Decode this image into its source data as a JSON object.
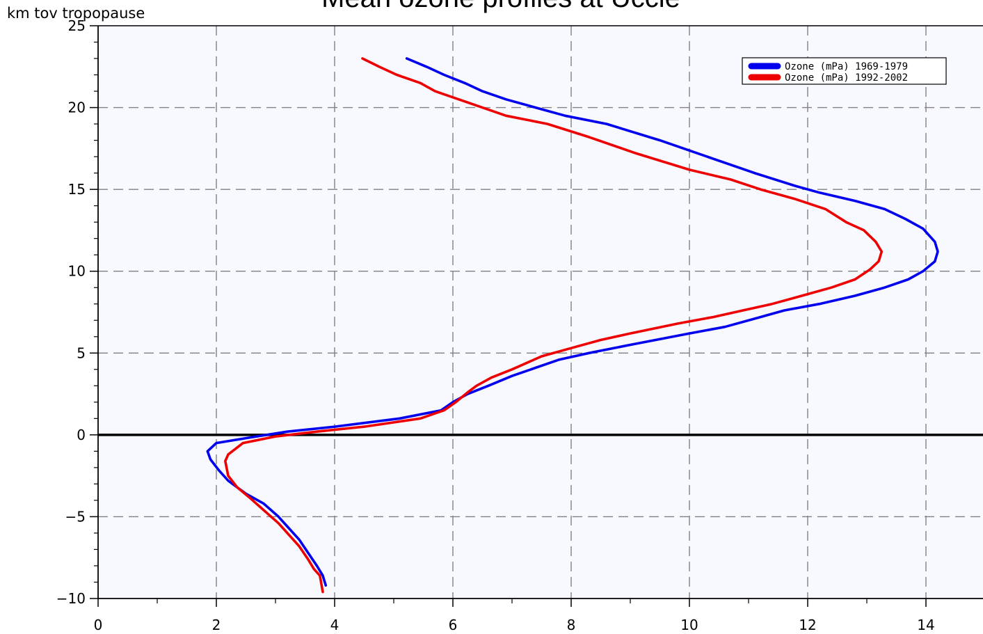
{
  "chart_data": {
    "type": "line",
    "title": "Mean ozone profiles at Uccle",
    "xlabel": "",
    "ylabel": "km tov tropopause",
    "xlim": [
      0,
      15
    ],
    "ylim": [
      -10,
      25
    ],
    "x_ticks": [
      0,
      2,
      4,
      6,
      8,
      10,
      12,
      14
    ],
    "y_ticks": [
      -10,
      -5,
      0,
      5,
      10,
      15,
      20,
      25
    ],
    "grid": true,
    "legend_position": "top-right",
    "zero_line": 0,
    "series": [
      {
        "name": "Ozone (mPa) 1969-1979",
        "color": "#0000ee",
        "points": [
          [
            5.22,
            23.0
          ],
          [
            5.55,
            22.5
          ],
          [
            5.85,
            22.0
          ],
          [
            6.2,
            21.5
          ],
          [
            6.5,
            21.0
          ],
          [
            6.9,
            20.5
          ],
          [
            7.4,
            20.0
          ],
          [
            7.9,
            19.5
          ],
          [
            8.6,
            19.0
          ],
          [
            9.5,
            18.0
          ],
          [
            10.3,
            17.0
          ],
          [
            11.1,
            16.0
          ],
          [
            11.8,
            15.2
          ],
          [
            12.2,
            14.8
          ],
          [
            12.8,
            14.3
          ],
          [
            13.3,
            13.8
          ],
          [
            13.65,
            13.2
          ],
          [
            13.95,
            12.6
          ],
          [
            14.15,
            11.8
          ],
          [
            14.2,
            11.2
          ],
          [
            14.15,
            10.6
          ],
          [
            13.95,
            10.0
          ],
          [
            13.7,
            9.5
          ],
          [
            13.3,
            9.0
          ],
          [
            12.8,
            8.5
          ],
          [
            12.2,
            8.0
          ],
          [
            11.6,
            7.6
          ],
          [
            11.2,
            7.2
          ],
          [
            10.6,
            6.6
          ],
          [
            10.0,
            6.2
          ],
          [
            9.0,
            5.5
          ],
          [
            8.3,
            5.0
          ],
          [
            7.8,
            4.6
          ],
          [
            7.0,
            3.6
          ],
          [
            6.6,
            3.0
          ],
          [
            6.25,
            2.5
          ],
          [
            6.0,
            2.0
          ],
          [
            5.8,
            1.5
          ],
          [
            5.1,
            1.0
          ],
          [
            4.0,
            0.5
          ],
          [
            3.2,
            0.2
          ],
          [
            2.5,
            -0.2
          ],
          [
            2.0,
            -0.5
          ],
          [
            1.85,
            -1.0
          ],
          [
            1.9,
            -1.5
          ],
          [
            2.05,
            -2.2
          ],
          [
            2.2,
            -2.8
          ],
          [
            2.5,
            -3.6
          ],
          [
            2.8,
            -4.2
          ],
          [
            3.05,
            -5.0
          ],
          [
            3.2,
            -5.6
          ],
          [
            3.4,
            -6.4
          ],
          [
            3.55,
            -7.2
          ],
          [
            3.7,
            -8.0
          ],
          [
            3.8,
            -8.6
          ],
          [
            3.85,
            -9.2
          ]
        ]
      },
      {
        "name": "Ozone (mPa) 1992-2002",
        "color": "#ee0000",
        "points": [
          [
            4.47,
            23.0
          ],
          [
            4.75,
            22.5
          ],
          [
            5.05,
            22.0
          ],
          [
            5.45,
            21.5
          ],
          [
            5.7,
            21.0
          ],
          [
            6.1,
            20.5
          ],
          [
            6.5,
            20.0
          ],
          [
            6.9,
            19.5
          ],
          [
            7.6,
            19.0
          ],
          [
            8.3,
            18.2
          ],
          [
            9.1,
            17.2
          ],
          [
            10.0,
            16.2
          ],
          [
            10.7,
            15.6
          ],
          [
            11.2,
            15.0
          ],
          [
            11.8,
            14.4
          ],
          [
            12.3,
            13.8
          ],
          [
            12.65,
            13.0
          ],
          [
            12.95,
            12.5
          ],
          [
            13.15,
            11.8
          ],
          [
            13.25,
            11.2
          ],
          [
            13.2,
            10.6
          ],
          [
            13.05,
            10.1
          ],
          [
            12.8,
            9.5
          ],
          [
            12.4,
            9.0
          ],
          [
            11.9,
            8.5
          ],
          [
            11.4,
            8.0
          ],
          [
            10.9,
            7.6
          ],
          [
            10.4,
            7.2
          ],
          [
            9.8,
            6.8
          ],
          [
            9.0,
            6.2
          ],
          [
            8.5,
            5.8
          ],
          [
            8.0,
            5.3
          ],
          [
            7.5,
            4.8
          ],
          [
            7.0,
            4.0
          ],
          [
            6.65,
            3.5
          ],
          [
            6.4,
            3.0
          ],
          [
            6.25,
            2.6
          ],
          [
            6.05,
            2.0
          ],
          [
            5.85,
            1.5
          ],
          [
            5.45,
            1.0
          ],
          [
            4.5,
            0.5
          ],
          [
            3.7,
            0.2
          ],
          [
            3.0,
            -0.1
          ],
          [
            2.45,
            -0.5
          ],
          [
            2.2,
            -1.2
          ],
          [
            2.15,
            -1.6
          ],
          [
            2.2,
            -2.5
          ],
          [
            2.35,
            -3.2
          ],
          [
            2.55,
            -3.8
          ],
          [
            2.8,
            -4.6
          ],
          [
            3.05,
            -5.4
          ],
          [
            3.2,
            -6.0
          ],
          [
            3.4,
            -6.8
          ],
          [
            3.55,
            -7.6
          ],
          [
            3.65,
            -8.2
          ],
          [
            3.75,
            -8.6
          ],
          [
            3.8,
            -9.6
          ]
        ]
      }
    ]
  }
}
